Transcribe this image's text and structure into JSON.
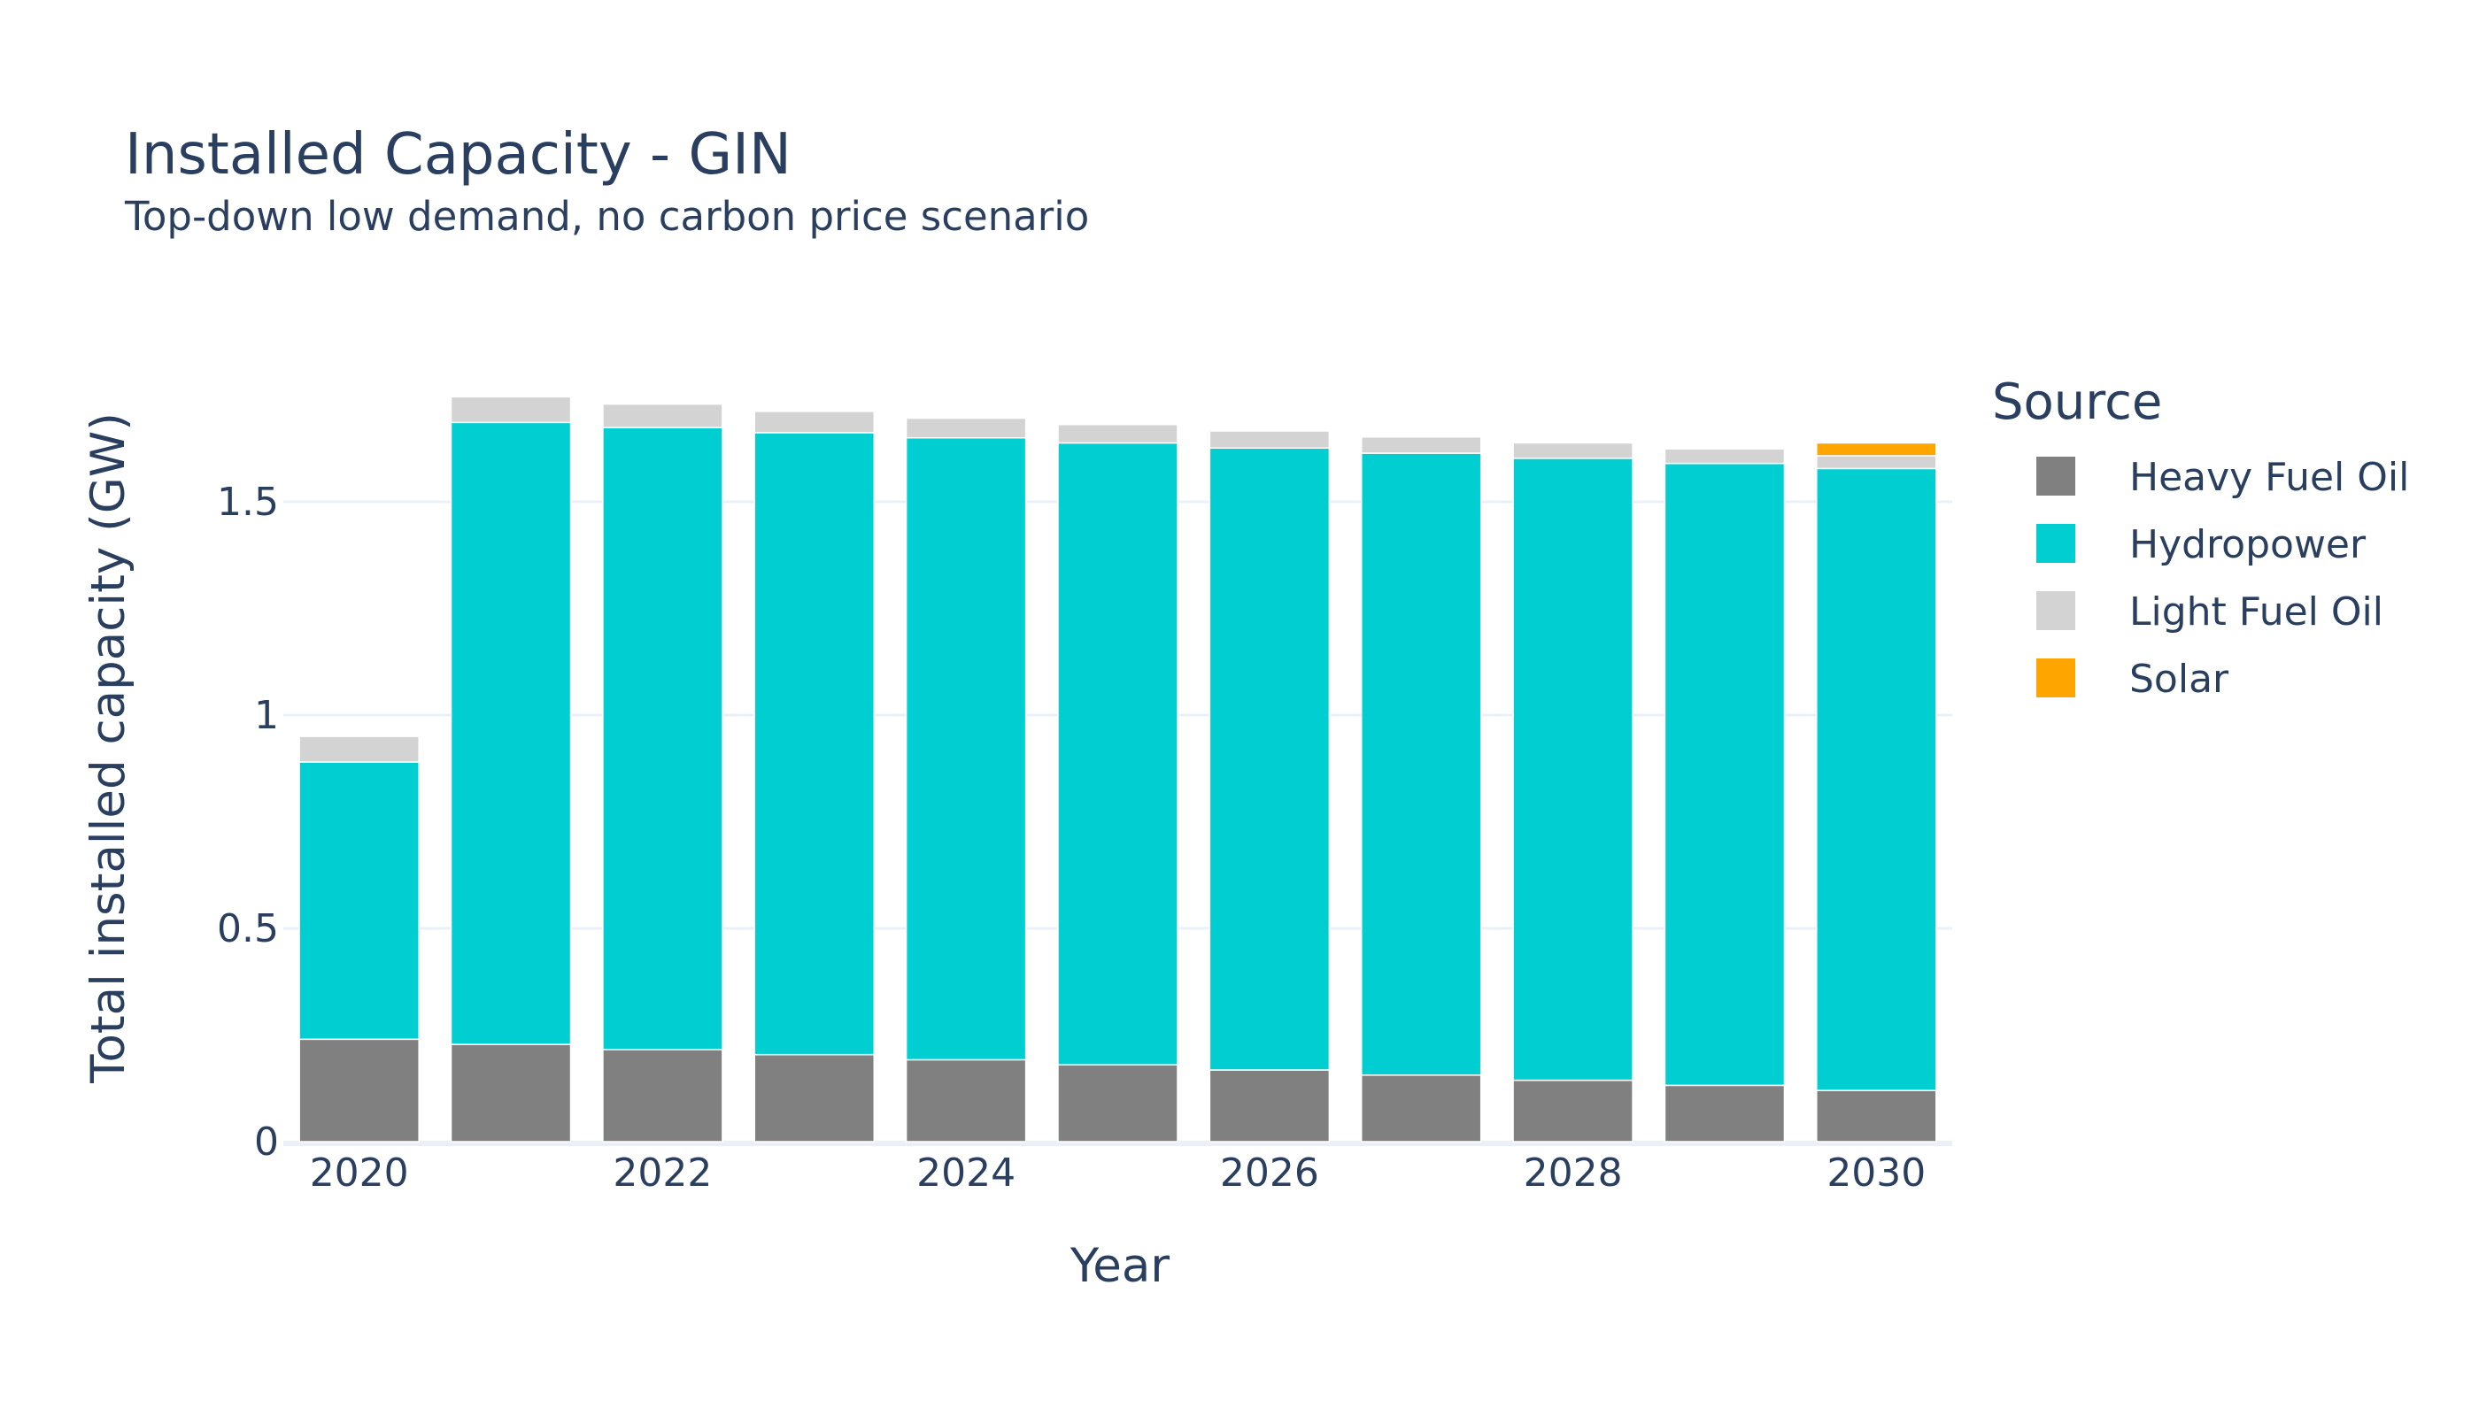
{
  "chart_data": {
    "type": "bar",
    "stacked": true,
    "title": "Installed Capacity - GIN",
    "subtitle": "Top-down low demand, no carbon price scenario",
    "xlabel": "Year",
    "ylabel": "Total installed capacity (GW)",
    "x": [
      2020,
      2021,
      2022,
      2023,
      2024,
      2025,
      2026,
      2027,
      2028,
      2029,
      2030
    ],
    "x_ticks": [
      "2020",
      "2022",
      "2024",
      "2026",
      "2028",
      "2030"
    ],
    "y_ticks": [
      "0",
      "0.5",
      "1",
      "1.5"
    ],
    "ylim": [
      0,
      1.8
    ],
    "grid": true,
    "legend_title": "Source",
    "legend_position": "right",
    "series": [
      {
        "name": "Heavy Fuel Oil",
        "color": "#808080",
        "values": [
          0.24,
          0.228,
          0.216,
          0.204,
          0.192,
          0.18,
          0.168,
          0.156,
          0.144,
          0.132,
          0.12
        ]
      },
      {
        "name": "Hydropower",
        "color": "#00CED1",
        "values": [
          0.65,
          1.458,
          1.458,
          1.458,
          1.458,
          1.458,
          1.458,
          1.458,
          1.458,
          1.458,
          1.458
        ]
      },
      {
        "name": "Light Fuel Oil",
        "color": "#D3D3D3",
        "values": [
          0.06,
          0.06,
          0.055,
          0.05,
          0.046,
          0.043,
          0.04,
          0.038,
          0.036,
          0.034,
          0.03
        ]
      },
      {
        "name": "Solar",
        "color": "#FFA500",
        "values": [
          0,
          0,
          0,
          0,
          0,
          0,
          0,
          0,
          0,
          0,
          0.03
        ]
      }
    ]
  }
}
